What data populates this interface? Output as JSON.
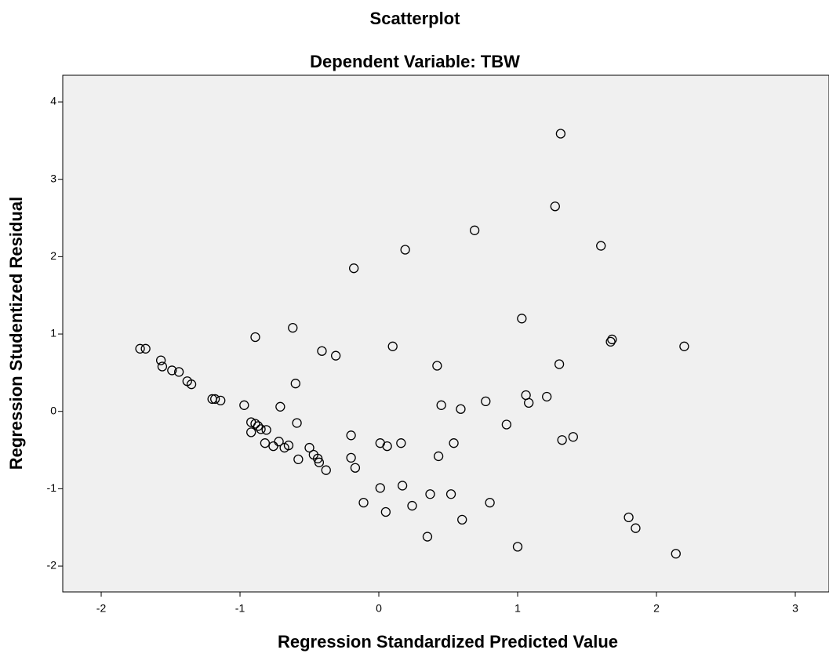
{
  "chart_data": {
    "type": "scatter",
    "title": "Scatterplot",
    "subtitle": "Dependent Variable: TBW",
    "x_label": "Regression Standardized Predicted Value",
    "y_label": "Regression Studentized Residual",
    "xlim": [
      -2.277,
      3.243
    ],
    "ylim": [
      -2.334,
      4.345
    ],
    "xticks": [
      -2,
      -1,
      0,
      1,
      2,
      3
    ],
    "yticks": [
      -2,
      -1,
      0,
      1,
      2,
      3,
      4
    ],
    "color": "#000000",
    "series": [
      {
        "x": [
          -1.72,
          -1.68,
          -1.57,
          -1.56,
          -1.49,
          -1.44,
          -1.38,
          -1.35,
          -1.2,
          -1.18,
          -1.14,
          -0.97,
          -0.92,
          -0.92,
          -0.89,
          -0.87,
          -0.85,
          -0.81,
          -0.82,
          -0.76,
          -0.72,
          -0.68,
          -0.65,
          -0.71,
          -0.6,
          -0.59,
          -0.58,
          -0.62,
          -0.89,
          -0.41,
          -0.31,
          -0.18,
          -0.5,
          -0.47,
          -0.44,
          -0.43,
          -0.38,
          -0.2,
          -0.2,
          -0.17,
          -0.11,
          0.01,
          0.06,
          0.16,
          0.01,
          0.05,
          0.17,
          0.24,
          0.19,
          0.1,
          0.42,
          0.45,
          0.43,
          0.54,
          0.59,
          0.37,
          0.35,
          0.52,
          0.6,
          0.69,
          0.8,
          0.77,
          0.92,
          1.0,
          1.03,
          1.06,
          1.08,
          1.21,
          1.3,
          1.32,
          1.4,
          1.27,
          1.31,
          1.6,
          1.67,
          1.68,
          1.8,
          1.85,
          2.14,
          2.2
        ],
        "values": [
          0.81,
          0.81,
          0.66,
          0.58,
          0.53,
          0.51,
          0.39,
          0.35,
          0.16,
          0.16,
          0.14,
          0.08,
          -0.14,
          -0.27,
          -0.16,
          -0.19,
          -0.23,
          -0.24,
          -0.41,
          -0.45,
          -0.39,
          -0.47,
          -0.44,
          0.06,
          0.36,
          -0.15,
          -0.62,
          1.08,
          0.96,
          0.78,
          0.72,
          1.85,
          -0.47,
          -0.56,
          -0.61,
          -0.66,
          -0.76,
          -0.31,
          -0.6,
          -0.73,
          -1.18,
          -0.41,
          -0.45,
          -0.41,
          -0.99,
          -1.3,
          -0.96,
          -1.22,
          2.09,
          0.84,
          0.59,
          0.08,
          -0.58,
          -0.41,
          0.03,
          -1.07,
          -1.62,
          -1.07,
          -1.4,
          2.34,
          -1.18,
          0.13,
          -0.17,
          -1.75,
          1.2,
          0.21,
          0.11,
          0.19,
          0.61,
          -0.37,
          -0.33,
          2.65,
          3.59,
          2.14,
          0.9,
          0.93,
          -1.37,
          -1.51,
          -1.84,
          0.84
        ]
      }
    ]
  }
}
